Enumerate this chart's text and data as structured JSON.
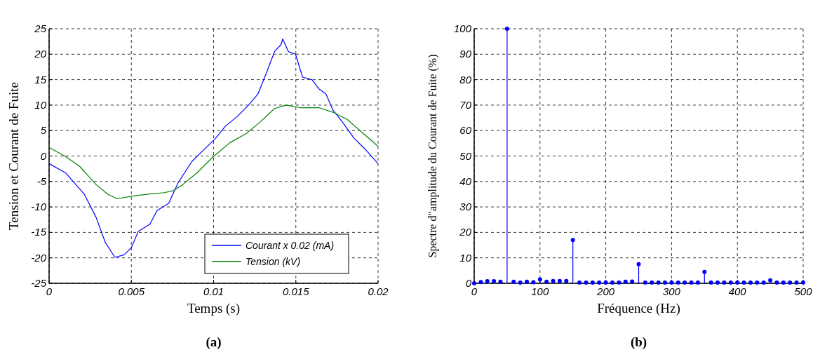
{
  "chart_data": [
    {
      "type": "line",
      "title": "(a)",
      "xlabel": "Temps (s)",
      "ylabel": "Tension et Courant de Fuite",
      "xlim": [
        0,
        0.02
      ],
      "xticks": [
        0,
        0.005,
        0.01,
        0.015,
        0.02
      ],
      "ylim": [
        -25,
        25
      ],
      "yticks": [
        -25,
        -20,
        -15,
        -10,
        -5,
        0,
        5,
        10,
        15,
        20,
        25
      ],
      "grid": true,
      "legend": "bottom right",
      "series": [
        {
          "name": "Courant x 0.02 (mA)",
          "color": "#0000ff",
          "x": [
            0,
            0.001,
            0.00214,
            0.00285,
            0.00342,
            0.004,
            0.00456,
            0.005,
            0.00542,
            0.00613,
            0.00656,
            0.00727,
            0.00785,
            0.0087,
            0.00956,
            0.01013,
            0.0107,
            0.01141,
            0.01213,
            0.0127,
            0.01327,
            0.0137,
            0.0141,
            0.0142,
            0.01455,
            0.01498,
            0.01541,
            0.01598,
            0.0164,
            0.01683,
            0.01726,
            0.01783,
            0.01854,
            0.01926,
            0.02
          ],
          "values": [
            -1.5,
            -3.3,
            -7.5,
            -12,
            -17,
            -19.9,
            -19.4,
            -18,
            -14.8,
            -13.4,
            -10.7,
            -9.3,
            -5.2,
            -1,
            1.7,
            3.5,
            5.8,
            7.7,
            10,
            12.2,
            16.8,
            20.5,
            21.9,
            23,
            20.5,
            20,
            15.5,
            15,
            13.2,
            12.2,
            9,
            6.7,
            3.5,
            1.2,
            -1.5
          ]
        },
        {
          "name": "Tension (kV)",
          "color": "#008000",
          "x": [
            0,
            0.001,
            0.00185,
            0.00285,
            0.00357,
            0.00414,
            0.005,
            0.006,
            0.007,
            0.00756,
            0.00813,
            0.00899,
            0.00999,
            0.01098,
            0.01198,
            0.01284,
            0.01369,
            0.0144,
            0.01526,
            0.0164,
            0.01726,
            0.01812,
            0.01911,
            0.02
          ],
          "values": [
            1.7,
            -0.1,
            -2,
            -5.6,
            -7.5,
            -8.4,
            -7.9,
            -7.5,
            -7.2,
            -6.8,
            -5.6,
            -3.3,
            -0.1,
            2.6,
            4.4,
            6.7,
            9.3,
            10,
            9.5,
            9.5,
            8.6,
            7.2,
            4.4,
            1.9
          ]
        }
      ]
    },
    {
      "type": "lollipop",
      "title": "(b)",
      "xlabel": "Fréquence (Hz)",
      "ylabel": "Spectre d\"amplitude du Courant de Fuite (%)",
      "xlim": [
        0,
        500
      ],
      "xticks": [
        0,
        100,
        200,
        300,
        400,
        500
      ],
      "ylim": [
        0,
        100
      ],
      "yticks": [
        0,
        10,
        20,
        30,
        40,
        50,
        60,
        70,
        80,
        90,
        100
      ],
      "grid": true,
      "marker": "circle",
      "series": [
        {
          "color": "#0000ff",
          "x": [
            0,
            10,
            20,
            30,
            40,
            50,
            60,
            70,
            80,
            90,
            100,
            110,
            120,
            130,
            140,
            150,
            160,
            170,
            180,
            190,
            200,
            210,
            220,
            230,
            240,
            250,
            260,
            270,
            280,
            290,
            300,
            310,
            320,
            330,
            340,
            350,
            360,
            370,
            380,
            390,
            400,
            410,
            420,
            430,
            440,
            450,
            460,
            470,
            480,
            490,
            500
          ],
          "values": [
            0,
            0.5,
            0.8,
            0.8,
            0.6,
            100,
            0.6,
            0.3,
            0.6,
            0.4,
            1.5,
            0.6,
            0.9,
            0.9,
            0.9,
            17,
            0.3,
            0.3,
            0.3,
            0.3,
            0.3,
            0.3,
            0.3,
            0.6,
            0.7,
            7.5,
            0.3,
            0.3,
            0.3,
            0.3,
            0.3,
            0.3,
            0.3,
            0.3,
            0.3,
            4.5,
            0.3,
            0.3,
            0.3,
            0.3,
            0.3,
            0.3,
            0.3,
            0.3,
            0.3,
            1.2,
            0.3,
            0.3,
            0.3,
            0.3,
            0.3
          ]
        }
      ]
    }
  ]
}
